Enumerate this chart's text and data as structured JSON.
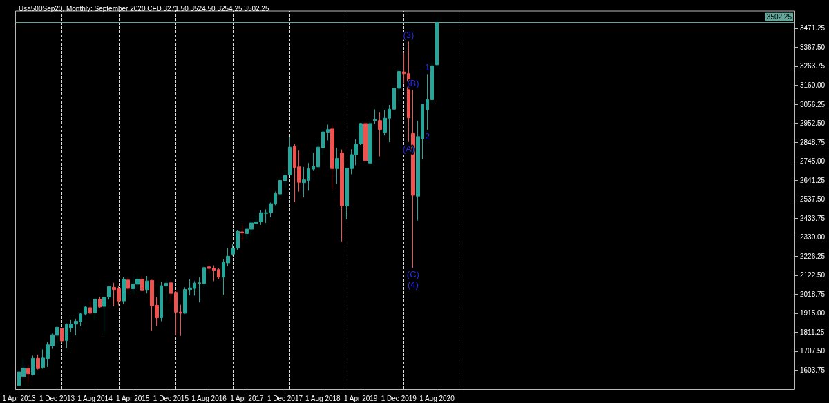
{
  "chart_data": {
    "type": "candlestick",
    "title": "Usa500Sep20, Monthly: September 2020 CFD 3271.50 3524.50 3254.25 3502.25",
    "x": [
      "2013-04",
      "2013-05",
      "2013-06",
      "2013-07",
      "2013-08",
      "2013-09",
      "2013-10",
      "2013-11",
      "2013-12",
      "2014-01",
      "2014-02",
      "2014-03",
      "2014-04",
      "2014-05",
      "2014-06",
      "2014-07",
      "2014-08",
      "2014-09",
      "2014-10",
      "2014-11",
      "2014-12",
      "2015-01",
      "2015-02",
      "2015-03",
      "2015-04",
      "2015-05",
      "2015-06",
      "2015-07",
      "2015-08",
      "2015-09",
      "2015-10",
      "2015-11",
      "2015-12",
      "2016-01",
      "2016-02",
      "2016-03",
      "2016-04",
      "2016-05",
      "2016-06",
      "2016-07",
      "2016-08",
      "2016-09",
      "2016-10",
      "2016-11",
      "2016-12",
      "2017-01",
      "2017-02",
      "2017-03",
      "2017-04",
      "2017-05",
      "2017-06",
      "2017-07",
      "2017-08",
      "2017-09",
      "2017-10",
      "2017-11",
      "2017-12",
      "2018-01",
      "2018-02",
      "2018-03",
      "2018-04",
      "2018-05",
      "2018-06",
      "2018-07",
      "2018-08",
      "2018-09",
      "2018-10",
      "2018-11",
      "2018-12",
      "2019-01",
      "2019-02",
      "2019-03",
      "2019-04",
      "2019-05",
      "2019-06",
      "2019-07",
      "2019-08",
      "2019-09",
      "2019-10",
      "2019-11",
      "2019-12",
      "2020-01",
      "2020-02",
      "2020-03",
      "2020-04",
      "2020-05",
      "2020-06",
      "2020-07",
      "2020-08"
    ],
    "ohlc": [
      [
        1519,
        1600,
        1513,
        1594
      ],
      [
        1569,
        1665,
        1554,
        1615
      ],
      [
        1612,
        1631,
        1538,
        1584
      ],
      [
        1581,
        1683,
        1574,
        1668
      ],
      [
        1668,
        1689,
        1607,
        1612
      ],
      [
        1618,
        1717,
        1611,
        1670
      ],
      [
        1668,
        1757,
        1621,
        1742
      ],
      [
        1736,
        1803,
        1720,
        1797
      ],
      [
        1794,
        1843,
        1742,
        1838
      ],
      [
        1831,
        1834,
        1754,
        1764
      ],
      [
        1766,
        1859,
        1723,
        1853
      ],
      [
        1834,
        1880,
        1813,
        1855
      ],
      [
        1855,
        1885,
        1794,
        1871
      ],
      [
        1868,
        1918,
        1843,
        1911
      ],
      [
        1911,
        1952,
        1905,
        1948
      ],
      [
        1945,
        1979,
        1912,
        1915
      ],
      [
        1917,
        1995,
        1880,
        1992
      ],
      [
        1991,
        2005,
        1945,
        1949
      ],
      [
        1952,
        2007,
        1806,
        2001
      ],
      [
        2003,
        2065,
        1989,
        2060
      ],
      [
        2056,
        2081,
        1952,
        2044
      ],
      [
        2048,
        2063,
        1958,
        1982
      ],
      [
        1982,
        2112,
        1966,
        2100
      ],
      [
        2096,
        2112,
        2026,
        2050
      ],
      [
        2048,
        2112,
        2023,
        2075
      ],
      [
        2073,
        2128,
        2048,
        2100
      ],
      [
        2100,
        2116,
        2036,
        2042
      ],
      [
        2044,
        2118,
        2023,
        2091
      ],
      [
        2094,
        2097,
        1818,
        1955
      ],
      [
        1958,
        2003,
        1847,
        1890
      ],
      [
        1890,
        2087,
        1871,
        2065
      ],
      [
        2063,
        2102,
        1989,
        2079
      ],
      [
        2081,
        2097,
        1974,
        2023
      ],
      [
        2029,
        2038,
        1794,
        1921
      ],
      [
        1921,
        1961,
        1791,
        1915
      ],
      [
        1915,
        2056,
        1912,
        2044
      ],
      [
        2044,
        2100,
        2013,
        2053
      ],
      [
        2050,
        2090,
        2011,
        2079
      ],
      [
        2077,
        2112,
        1974,
        2081
      ],
      [
        2077,
        2168,
        2056,
        2164
      ],
      [
        2168,
        2186,
        2131,
        2159
      ],
      [
        2161,
        2176,
        2090,
        2149
      ],
      [
        2153,
        2159,
        2100,
        2112
      ],
      [
        2112,
        2208,
        2016,
        2192
      ],
      [
        2190,
        2269,
        2171,
        2226
      ],
      [
        2238,
        2295,
        2229,
        2270
      ],
      [
        2270,
        2369,
        2260,
        2361
      ],
      [
        2359,
        2396,
        2310,
        2353
      ],
      [
        2350,
        2390,
        2316,
        2374
      ],
      [
        2374,
        2421,
        2340,
        2408
      ],
      [
        2406,
        2448,
        2396,
        2414
      ],
      [
        2414,
        2476,
        2398,
        2464
      ],
      [
        2460,
        2482,
        2408,
        2464
      ],
      [
        2464,
        2519,
        2439,
        2513
      ],
      [
        2511,
        2579,
        2505,
        2569
      ],
      [
        2566,
        2653,
        2556,
        2640
      ],
      [
        2637,
        2695,
        2600,
        2668
      ],
      [
        2670,
        2877,
        2668,
        2822
      ],
      [
        2826,
        2838,
        2522,
        2711
      ],
      [
        2714,
        2803,
        2579,
        2630
      ],
      [
        2628,
        2714,
        2547,
        2643
      ],
      [
        2640,
        2735,
        2584,
        2705
      ],
      [
        2702,
        2791,
        2692,
        2717
      ],
      [
        2714,
        2846,
        2695,
        2822
      ],
      [
        2818,
        2914,
        2781,
        2905
      ],
      [
        2900,
        2945,
        2859,
        2918
      ],
      [
        2921,
        2945,
        2593,
        2705
      ],
      [
        2705,
        2818,
        2621,
        2760
      ],
      [
        2791,
        2809,
        2307,
        2501
      ],
      [
        2501,
        2707,
        2427,
        2707
      ],
      [
        2705,
        2810,
        2674,
        2781
      ],
      [
        2781,
        2865,
        2723,
        2838
      ],
      [
        2840,
        2954,
        2834,
        2951
      ],
      [
        2951,
        2958,
        2742,
        2748
      ],
      [
        2735,
        2967,
        2723,
        2951
      ],
      [
        2967,
        3028,
        2949,
        2972
      ],
      [
        2967,
        3011,
        2772,
        2918
      ],
      [
        2900,
        3026,
        2886,
        2980
      ],
      [
        2980,
        3053,
        2849,
        3029
      ],
      [
        3029,
        3155,
        3026,
        3143
      ],
      [
        3143,
        3250,
        3063,
        3235
      ],
      [
        3233,
        3337,
        3167,
        3223
      ],
      [
        3223,
        3398,
        2850,
        2982
      ],
      [
        2896,
        3134,
        2162,
        2559
      ],
      [
        2554,
        2964,
        2421,
        2880
      ],
      [
        2868,
        3056,
        2756,
        3056
      ],
      [
        3026,
        3221,
        2917,
        3081
      ],
      [
        3081,
        3285,
        3063,
        3266
      ],
      [
        3271.5,
        3524.5,
        3254.25,
        3502.25
      ]
    ],
    "colors": [
      "#26a69a",
      "#26a69a",
      "#ef5350",
      "#26a69a",
      "#ef5350",
      "#26a69a",
      "#26a69a",
      "#26a69a",
      "#26a69a",
      "#ef5350",
      "#26a69a",
      "#26a69a",
      "#26a69a",
      "#26a69a",
      "#26a69a",
      "#ef5350",
      "#26a69a",
      "#ef5350",
      "#26a69a",
      "#26a69a",
      "#ef5350",
      "#ef5350",
      "#26a69a",
      "#ef5350",
      "#26a69a",
      "#26a69a",
      "#ef5350",
      "#26a69a",
      "#ef5350",
      "#ef5350",
      "#26a69a",
      "#26a69a",
      "#ef5350",
      "#ef5350",
      "#ef5350",
      "#26a69a",
      "#26a69a",
      "#26a69a",
      "#26a69a",
      "#26a69a",
      "#ef5350",
      "#ef5350",
      "#ef5350",
      "#26a69a",
      "#26a69a",
      "#26a69a",
      "#26a69a",
      "#ef5350",
      "#26a69a",
      "#26a69a",
      "#26a69a",
      "#26a69a",
      "#26a69a",
      "#26a69a",
      "#26a69a",
      "#26a69a",
      "#26a69a",
      "#26a69a",
      "#ef5350",
      "#ef5350",
      "#26a69a",
      "#26a69a",
      "#26a69a",
      "#26a69a",
      "#26a69a",
      "#26a69a",
      "#ef5350",
      "#26a69a",
      "#ef5350",
      "#26a69a",
      "#26a69a",
      "#26a69a",
      "#26a69a",
      "#ef5350",
      "#26a69a",
      "#26a69a",
      "#ef5350",
      "#26a69a",
      "#26a69a",
      "#26a69a",
      "#26a69a",
      "#ef5350",
      "#ef5350",
      "#ef5350",
      "#26a69a",
      "#26a69a",
      "#26a69a",
      "#26a69a",
      "#26a69a"
    ],
    "xlim": [
      "2013-03-10",
      "2026-11-10"
    ],
    "xticks": [
      {
        "value": "2013-04",
        "label": "1 Apr 2013"
      },
      {
        "value": "2013-12",
        "label": "1 Dec 2013"
      },
      {
        "value": "2014-08",
        "label": "1 Aug 2014"
      },
      {
        "value": "2015-04",
        "label": "1 Apr 2015"
      },
      {
        "value": "2015-12",
        "label": "1 Dec 2015"
      },
      {
        "value": "2016-08",
        "label": "1 Aug 2016"
      },
      {
        "value": "2017-04",
        "label": "1 Apr 2017"
      },
      {
        "value": "2017-12",
        "label": "1 Dec 2017"
      },
      {
        "value": "2018-08",
        "label": "1 Aug 2018"
      },
      {
        "value": "2019-04",
        "label": "1 Apr 2019"
      },
      {
        "value": "2019-12",
        "label": "1 Dec 2019"
      },
      {
        "value": "2020-08",
        "label": "1 Aug 2020"
      }
    ],
    "ylim": [
      1500,
      3565
    ],
    "yticks": [
      1603.75,
      {
        "value": 1707.5,
        "label": "1707.50"
      },
      1811.25,
      {
        "value": 1915,
        "label": "1915.00"
      },
      2018.75,
      {
        "value": 2122.5,
        "label": "2122.50"
      },
      2226.25,
      {
        "value": 2330,
        "label": "2330.00"
      },
      2433.75,
      {
        "value": 2537.5,
        "label": "2537.50"
      },
      2641.25,
      {
        "value": 2745,
        "label": "2745.00"
      },
      2848.75,
      {
        "value": 2952.5,
        "label": "2952.50"
      },
      3056.25,
      {
        "value": 3160,
        "label": "3160.00"
      },
      3263.75,
      {
        "value": 3367.5,
        "label": "3367.50"
      },
      3471.25
    ],
    "ref_lines": [
      {
        "axis": "x",
        "value": "2014-01",
        "color": "#dddddd",
        "line_style": "dashed"
      },
      {
        "axis": "x",
        "value": "2015-01",
        "color": "#dddddd",
        "line_style": "dashed"
      },
      {
        "axis": "x",
        "value": "2016-01",
        "color": "#dddddd",
        "line_style": "dashed"
      },
      {
        "axis": "x",
        "value": "2017-01",
        "color": "#dddddd",
        "line_style": "dashed"
      },
      {
        "axis": "x",
        "value": "2018-01",
        "color": "#dddddd",
        "line_style": "dashed"
      },
      {
        "axis": "x",
        "value": "2019-01",
        "color": "#dddddd",
        "line_style": "dashed"
      },
      {
        "axis": "x",
        "value": "2020-01",
        "color": "#dddddd",
        "line_style": "dashed"
      },
      {
        "axis": "x",
        "value": "2021-01",
        "color": "#dddddd",
        "line_style": "dashed"
      },
      {
        "axis": "y",
        "value": 3502.25,
        "label": "3502.25",
        "color": "#5fa89b",
        "line_style": "solid"
      }
    ],
    "annotations": [
      {
        "text": "(3)",
        "x": "2020-02",
        "y": 3398
      },
      {
        "text": "(B)",
        "x": "2020-03",
        "y": 3134
      },
      {
        "text": "(A)",
        "x": "2020-02",
        "y": 2850
      },
      {
        "text": "(C)",
        "x": "2020-03",
        "y": 2162
      },
      {
        "text": "(4)",
        "x": "2020-03",
        "y": 2162
      },
      {
        "text": "1",
        "x": "2020-06",
        "y": 3221
      },
      {
        "text": "2",
        "x": "2020-06",
        "y": 2917
      }
    ],
    "grid": false
  }
}
